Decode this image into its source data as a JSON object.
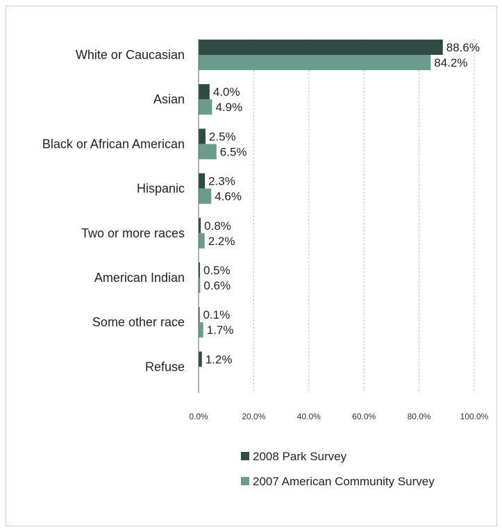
{
  "chart_data": {
    "type": "bar",
    "orientation": "horizontal",
    "title": "",
    "xlabel": "",
    "ylabel": "",
    "categories": [
      "White or Caucasian",
      "Asian",
      "Black or African American",
      "Hispanic",
      "Two or more races",
      "American Indian",
      "Some other race",
      "Refuse"
    ],
    "series": [
      {
        "name": "2008 Park Survey",
        "color": "#2f4b43",
        "values": [
          88.6,
          4.0,
          2.5,
          2.3,
          0.8,
          0.5,
          0.1,
          1.2
        ],
        "labels": [
          "88.6%",
          "4.0%",
          "2.5%",
          "2.3%",
          "0.8%",
          "0.5%",
          "0.1%",
          "1.2%"
        ]
      },
      {
        "name": "2007 American Community Survey",
        "color": "#6b9b8a",
        "values": [
          84.2,
          4.9,
          6.5,
          4.6,
          2.2,
          0.6,
          1.7,
          null
        ],
        "labels": [
          "84.2%",
          "4.9%",
          "6.5%",
          "4.6%",
          "2.2%",
          "0.6%",
          "1.7%",
          ""
        ]
      }
    ],
    "xlim": [
      0,
      100
    ],
    "xticks": [
      0,
      20,
      40,
      60,
      80,
      100
    ],
    "xtick_labels": [
      "0.0%",
      "20.0%",
      "40.0%",
      "60.0%",
      "80.0%",
      "100.0%"
    ],
    "grid": true,
    "legend_position": "bottom"
  }
}
